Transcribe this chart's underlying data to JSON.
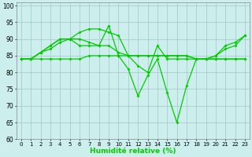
{
  "xlabel": "Humidité relative (%)",
  "xlim_min": -0.5,
  "xlim_max": 23.5,
  "ylim": [
    60,
    101
  ],
  "yticks": [
    60,
    65,
    70,
    75,
    80,
    85,
    90,
    95,
    100
  ],
  "xticks": [
    0,
    1,
    2,
    3,
    4,
    5,
    6,
    7,
    8,
    9,
    10,
    11,
    12,
    13,
    14,
    15,
    16,
    17,
    18,
    19,
    20,
    21,
    22,
    23
  ],
  "background_color": "#cceeed",
  "grid_color": "#aacccc",
  "line_color": "#00cc00",
  "lines": [
    [
      84,
      84,
      86,
      88,
      90,
      90,
      92,
      93,
      93,
      92,
      91,
      85,
      82,
      80,
      88,
      84,
      84,
      84,
      84,
      84,
      85,
      87,
      88,
      91
    ],
    [
      84,
      84,
      86,
      87,
      89,
      90,
      90,
      89,
      88,
      88,
      86,
      85,
      85,
      85,
      85,
      85,
      85,
      85,
      84,
      84,
      84,
      84,
      84,
      84
    ],
    [
      84,
      84,
      86,
      88,
      90,
      90,
      88,
      88,
      88,
      94,
      85,
      81,
      73,
      79,
      84,
      74,
      65,
      76,
      84,
      84,
      85,
      88,
      89,
      91
    ],
    [
      84,
      84,
      84,
      84,
      84,
      84,
      84,
      85,
      85,
      85,
      85,
      85,
      85,
      85,
      85,
      85,
      85,
      85,
      84,
      84,
      84,
      84,
      84,
      84
    ]
  ],
  "figsize": [
    3.2,
    2.0
  ],
  "dpi": 100
}
